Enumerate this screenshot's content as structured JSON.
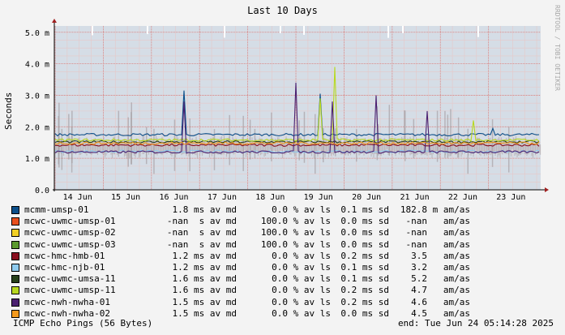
{
  "chart_data": {
    "type": "line",
    "title": "Last 10 Days",
    "ylabel": "Seconds",
    "credit": "RRDTOOL / TOBI OETIKER",
    "ylim": [
      0,
      5.2
    ],
    "y_ticks": [
      "0.0",
      "1.0 m",
      "2.0 m",
      "3.0 m",
      "4.0 m",
      "5.0 m"
    ],
    "x_ticks": [
      "14 Jun",
      "15 Jun",
      "16 Jun",
      "17 Jun",
      "18 Jun",
      "19 Jun",
      "20 Jun",
      "21 Jun",
      "22 Jun",
      "23 Jun"
    ],
    "grid": true,
    "series": [
      {
        "name": "mcmm-umsp-01",
        "color": "#0b4f8a",
        "avg": "1.8 ms av md",
        "loss": "0.0 % av ls",
        "sd": "0.1 ms sd",
        "amas": "182.8 m am/as"
      },
      {
        "name": "mcwc-uwmc-umsp-01",
        "color": "#e8501e",
        "avg": "-nan  s av md",
        "loss": "100.0 % av ls",
        "sd": "0.0 ms sd",
        "amas": "-nan   am/as"
      },
      {
        "name": "mcwc-uwmc-umsp-02",
        "color": "#f2d024",
        "avg": "-nan  s av md",
        "loss": "100.0 % av ls",
        "sd": "0.0 ms sd",
        "amas": "-nan   am/as"
      },
      {
        "name": "mcwc-uwmc-umsp-03",
        "color": "#5b9a2e",
        "avg": "-nan  s av md",
        "loss": "100.0 % av ls",
        "sd": "0.0 ms sd",
        "amas": "-nan   am/as"
      },
      {
        "name": "mcwc-hmc-hmb-01",
        "color": "#8a1020",
        "avg": "1.2 ms av md",
        "loss": "0.0 % av ls",
        "sd": "0.2 ms sd",
        "amas": "3.5   am/as"
      },
      {
        "name": "mcwc-hmc-njb-01",
        "color": "#8fcbef",
        "avg": "1.2 ms av md",
        "loss": "0.0 % av ls",
        "sd": "0.1 ms sd",
        "amas": "3.2   am/as"
      },
      {
        "name": "mcwc-uwmc-umsa-11",
        "color": "#27401a",
        "avg": "1.6 ms av md",
        "loss": "0.0 % av ls",
        "sd": "0.1 ms sd",
        "amas": "5.2   am/as"
      },
      {
        "name": "mcwc-uwmc-umsp-11",
        "color": "#b8d820",
        "avg": "1.6 ms av md",
        "loss": "0.0 % av ls",
        "sd": "0.2 ms sd",
        "amas": "4.7   am/as"
      },
      {
        "name": "mcwc-nwh-nwha-01",
        "color": "#4a2070",
        "avg": "1.5 ms av md",
        "loss": "0.0 % av ls",
        "sd": "0.2 ms sd",
        "amas": "4.6   am/as"
      },
      {
        "name": "mcwc-nwh-nwha-02",
        "color": "#f49a1e",
        "avg": "1.5 ms av md",
        "loss": "0.0 % av ls",
        "sd": "0.0 ms sd",
        "amas": "4.5   am/as"
      }
    ]
  },
  "footer": {
    "left": "ICMP Echo Pings (56 Bytes)",
    "right": "end: Tue Jun 24 05:14:28 2025"
  }
}
